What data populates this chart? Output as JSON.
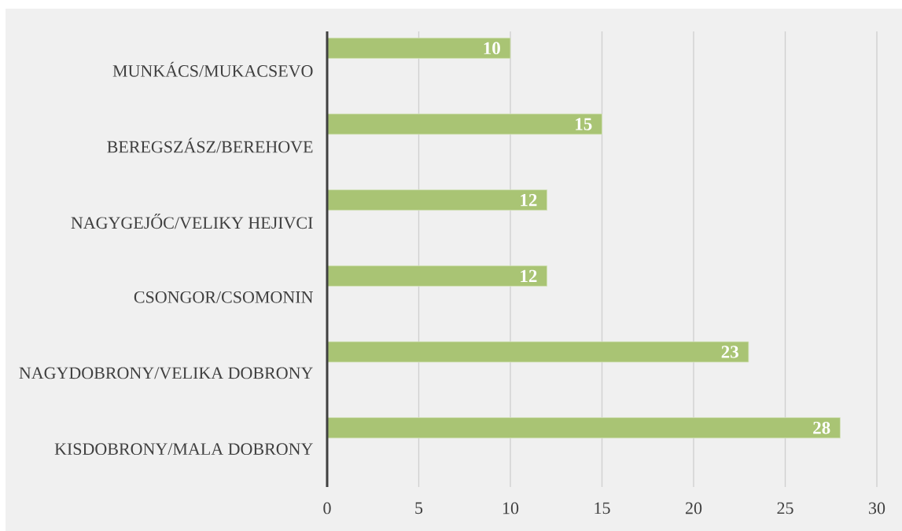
{
  "chart_data": {
    "type": "bar",
    "orientation": "horizontal",
    "categories": [
      "MUNKÁCS/MUKACSEVO",
      "BEREGSZÁSZ/BEREHOVE",
      "NAGYGEJŐC/VELIKY HEJIVCI",
      "CSONGOR/CSOMONIN",
      "NAGYDOBRONY/VELIKA DOBRONY",
      "KISDOBRONY/MALA DOBRONY"
    ],
    "values": [
      10,
      15,
      12,
      12,
      23,
      28
    ],
    "color": "#a9c474",
    "xlim": [
      0,
      30
    ],
    "xticks": [
      0,
      5,
      10,
      15,
      20,
      25,
      30
    ],
    "grid": "x",
    "data_labels": true
  }
}
